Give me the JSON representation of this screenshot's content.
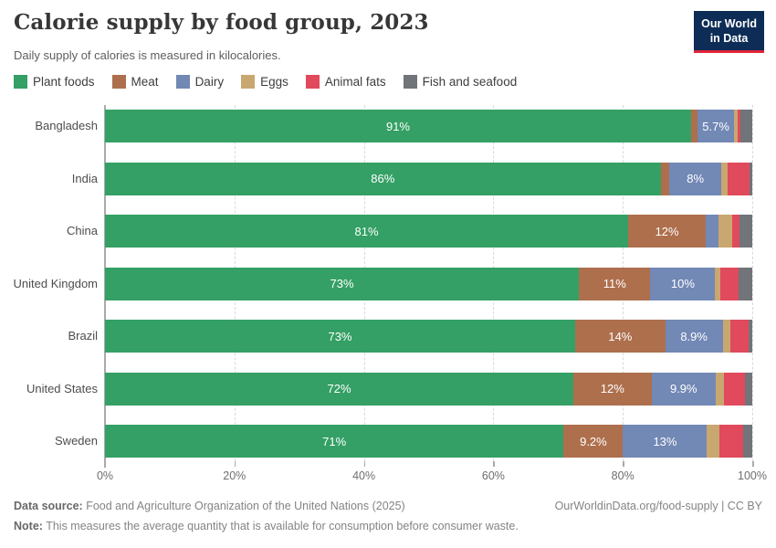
{
  "header": {
    "title": "Calorie supply by food group, 2023",
    "subtitle": "Daily supply of calories is measured in kilocalories.",
    "logo": {
      "line1": "Our World",
      "line2": "in Data",
      "bg_color": "#0d2c56",
      "accent_color": "#e0253c"
    }
  },
  "chart_data": {
    "type": "bar",
    "stacked": true,
    "orientation": "horizontal",
    "unit": "%",
    "categories": [
      "Bangladesh",
      "India",
      "China",
      "United Kingdom",
      "Brazil",
      "United States",
      "Sweden"
    ],
    "series": [
      {
        "name": "Plant foods",
        "color": "#34a065",
        "values": [
          91,
          86,
          81,
          73,
          73,
          72,
          71
        ]
      },
      {
        "name": "Meat",
        "color": "#ae6f4d",
        "values": [
          1.0,
          1.4,
          12,
          11,
          14,
          12,
          9.2
        ]
      },
      {
        "name": "Dairy",
        "color": "#7288b5",
        "values": [
          5.7,
          8,
          2.0,
          10,
          8.9,
          9.9,
          13
        ]
      },
      {
        "name": "Eggs",
        "color": "#c9a770",
        "values": [
          0.6,
          1.0,
          2.1,
          0.8,
          1.2,
          1.3,
          1.9
        ]
      },
      {
        "name": "Animal fats",
        "color": "#e04a5c",
        "values": [
          0.3,
          3.4,
          1.1,
          2.8,
          2.9,
          3.2,
          3.7
        ]
      },
      {
        "name": "Fish and seafood",
        "color": "#717479",
        "values": [
          1.9,
          0.4,
          2.0,
          2.1,
          0.5,
          1.1,
          1.4
        ]
      }
    ],
    "segment_labels": [
      [
        "91%",
        "",
        "5.7%",
        "",
        "",
        ""
      ],
      [
        "86%",
        "",
        "8%",
        "",
        "",
        ""
      ],
      [
        "81%",
        "12%",
        "",
        "",
        "",
        ""
      ],
      [
        "73%",
        "11%",
        "10%",
        "",
        "",
        ""
      ],
      [
        "73%",
        "14%",
        "8.9%",
        "",
        "",
        ""
      ],
      [
        "72%",
        "12%",
        "9.9%",
        "",
        "",
        ""
      ],
      [
        "71%",
        "9.2%",
        "13%",
        "",
        "",
        ""
      ]
    ],
    "x_ticks": [
      "0%",
      "20%",
      "40%",
      "60%",
      "80%",
      "100%"
    ],
    "xlim": [
      0,
      100
    ],
    "grid": "dashed-vertical",
    "legend_position": "top"
  },
  "footer": {
    "datasource_label": "Data source:",
    "datasource_text": " Food and Agriculture Organization of the United Nations (2025)",
    "note_label": "Note:",
    "note_text": " This measures the average quantity that is available for consumption before consumer waste.",
    "right_text": "OurWorldinData.org/food-supply | CC BY"
  }
}
